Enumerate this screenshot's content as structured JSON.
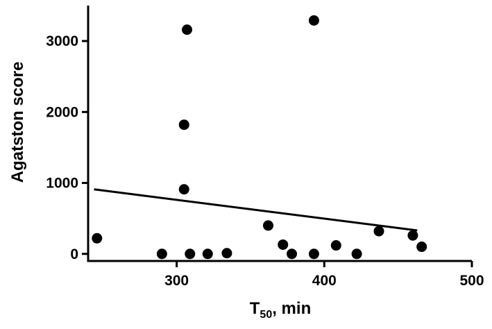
{
  "chart_data": {
    "type": "scatter",
    "xlabel": "T",
    "xlabel_sub": "50",
    "xlabel_suffix": ", min",
    "ylabel": "Agatston score",
    "xlim": [
      240,
      500
    ],
    "ylim": [
      -100,
      3500
    ],
    "x_ticks": [
      300,
      400,
      500
    ],
    "y_ticks": [
      0,
      1000,
      2000,
      3000
    ],
    "grid": false,
    "marker_color": "#000000",
    "points": [
      {
        "x": 246,
        "y": 220
      },
      {
        "x": 290,
        "y": 0
      },
      {
        "x": 305,
        "y": 910
      },
      {
        "x": 305,
        "y": 1820
      },
      {
        "x": 307,
        "y": 3160
      },
      {
        "x": 309,
        "y": 0
      },
      {
        "x": 321,
        "y": 0
      },
      {
        "x": 334,
        "y": 10
      },
      {
        "x": 362,
        "y": 400
      },
      {
        "x": 372,
        "y": 130
      },
      {
        "x": 378,
        "y": 0
      },
      {
        "x": 393,
        "y": 3290
      },
      {
        "x": 393,
        "y": 0
      },
      {
        "x": 408,
        "y": 120
      },
      {
        "x": 422,
        "y": 0
      },
      {
        "x": 437,
        "y": 320
      },
      {
        "x": 460,
        "y": 260
      },
      {
        "x": 466,
        "y": 100
      }
    ],
    "regression_line": {
      "x": [
        244,
        463
      ],
      "y": [
        910,
        330
      ]
    }
  }
}
